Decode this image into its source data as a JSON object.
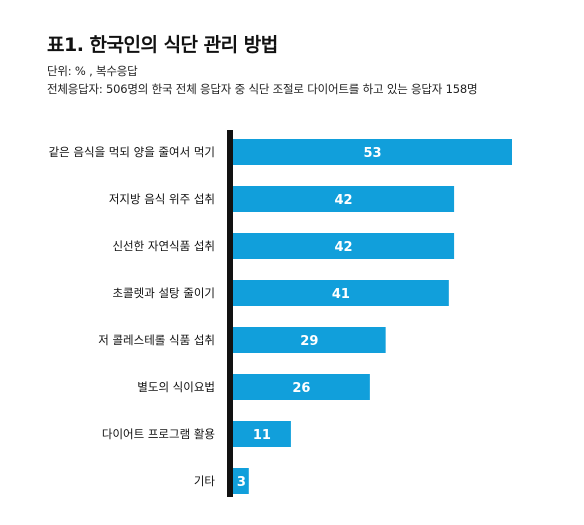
{
  "title": "표1. 한국인의 식단 관리 방법",
  "unit_text": "단위: % , 복수응답",
  "base_text": "전체응답자: 506명의 한국 전체 응답자 중 식단 조절로 다이어트를 하고 있는 응답자 158명",
  "colors": {
    "bar": "#119fdb",
    "axis": "#111111",
    "label_inside": "#ffffff"
  },
  "chart_data": {
    "type": "bar",
    "orientation": "horizontal",
    "categories": [
      "같은 음식을 먹되 양을 줄여서 먹기",
      "저지방 음식 위주 섭취",
      "신선한 자연식품 섭취",
      "초콜렛과 설탕 줄이기",
      "저 콜레스테롤 식품 섭취",
      "별도의 식이요법",
      "다이어트 프로그램 활용",
      "기타"
    ],
    "values": [
      53,
      42,
      42,
      41,
      29,
      26,
      11,
      3
    ],
    "xlim": [
      0,
      53
    ],
    "grid": false,
    "legend": "none"
  }
}
